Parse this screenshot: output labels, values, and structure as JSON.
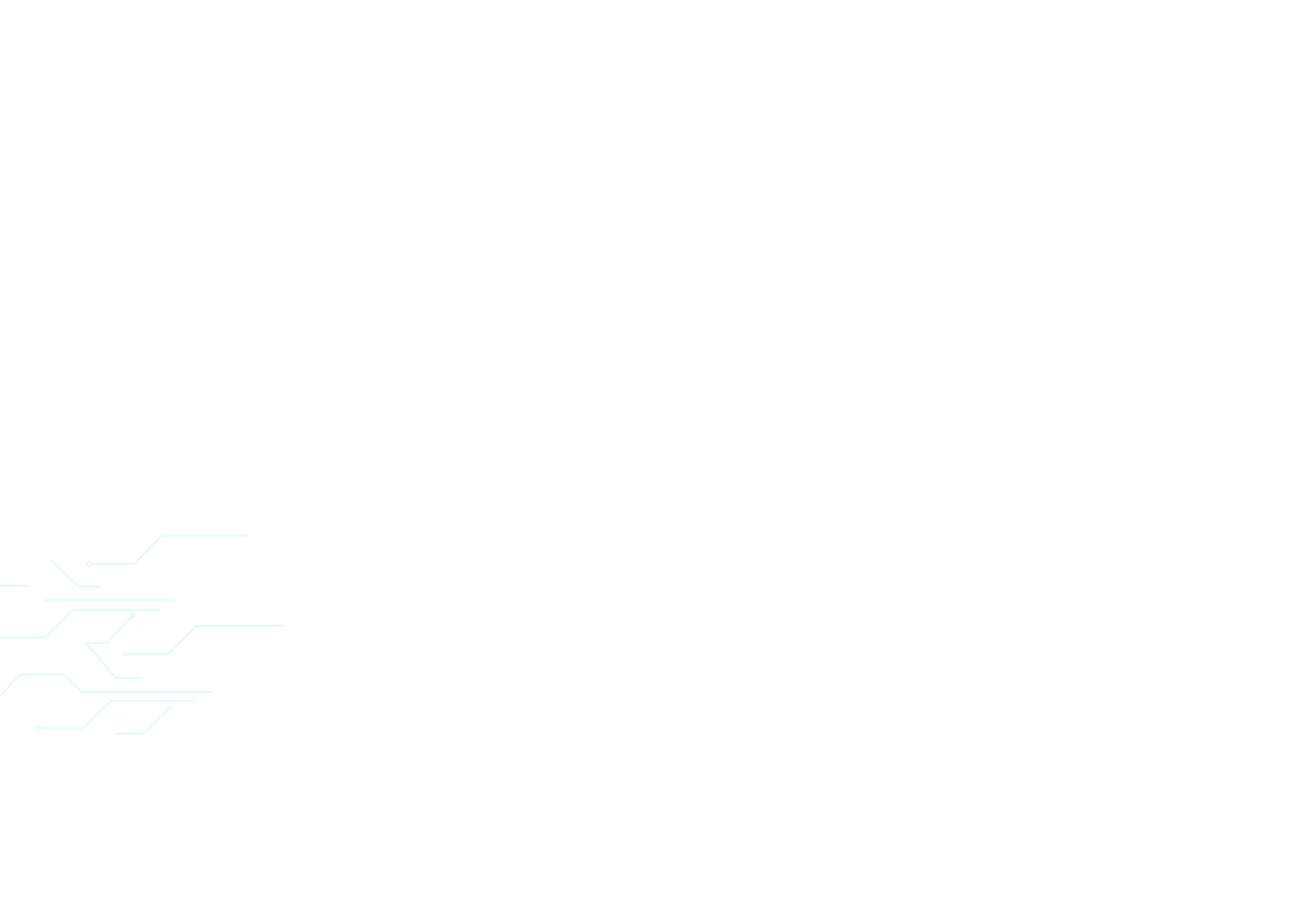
{
  "background": {
    "color": "#ffffff",
    "decoration": "circuit-lines-graphic",
    "decoration_color": "#dff6f8"
  }
}
